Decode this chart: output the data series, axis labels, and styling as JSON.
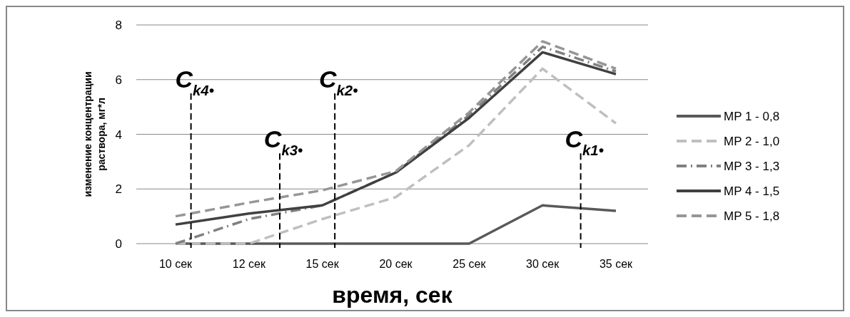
{
  "chart_data": {
    "type": "line",
    "xlabel": "время, сек",
    "ylabel": "изменение концентрации\nраствора, мг*л",
    "categories": [
      "10 сек",
      "12 сек",
      "15 сек",
      "20 сек",
      "25 сек",
      "30 сек",
      "35 сек"
    ],
    "ylim": [
      0,
      8
    ],
    "yticks": [
      0,
      2,
      4,
      6,
      8
    ],
    "grid": "y",
    "legend": "right",
    "marker": "none",
    "series": [
      {
        "name": "MP 1 - 0,8",
        "color": "#595959",
        "line_style": "solid",
        "values": [
          0,
          0,
          0,
          0,
          0,
          1.4,
          1.2
        ]
      },
      {
        "name": "MP 2 - 1,0",
        "color": "#bfbfbf",
        "line_style": "dashed",
        "values": [
          0,
          0,
          0.9,
          1.7,
          3.6,
          6.4,
          4.4
        ]
      },
      {
        "name": "MP 3 - 1,3",
        "color": "#808080",
        "line_style": "dotted",
        "values": [
          0,
          0.9,
          1.4,
          2.6,
          4.7,
          7.2,
          6.3
        ]
      },
      {
        "name": "MP 4 - 1,5",
        "color": "#404040",
        "line_style": "solid",
        "values": [
          0.7,
          1.1,
          1.4,
          2.6,
          4.6,
          7.0,
          6.2
        ]
      },
      {
        "name": "MP 5 - 1,8",
        "color": "#969696",
        "line_style": "dashed",
        "values": [
          1.0,
          1.5,
          1.95,
          2.65,
          4.8,
          7.4,
          6.4
        ]
      }
    ],
    "annotations": [
      "C$_{k4•}$",
      "C$_{k3•}$",
      "C$_{k2•}$",
      "C$_{k1•}$"
    ]
  }
}
